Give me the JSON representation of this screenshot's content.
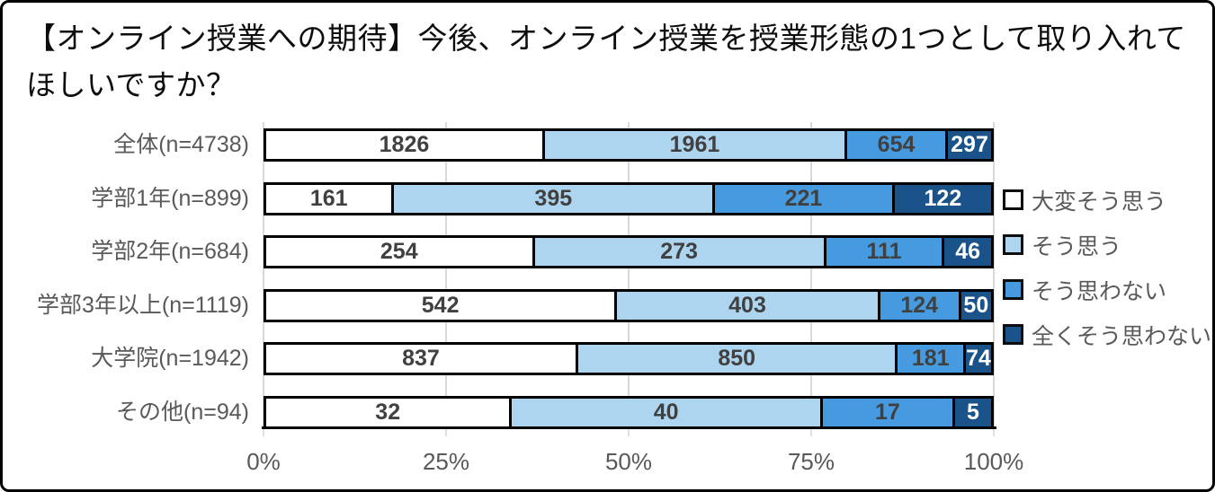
{
  "title": "【オンライン授業への期待】今後、オンライン授業を授業形態の1つとして取り入れてほしいですか？",
  "colors": {
    "frame_border": "#000000",
    "background": "#ffffff",
    "gridline": "#d9d9d9",
    "axis_line": "#000000",
    "bar_border": "#000000",
    "axis_text": "#595959",
    "category_text": "#595959",
    "legend_text": "#595959",
    "value_label_dark": "#404040",
    "value_label_light": "#ffffff"
  },
  "chart_data": {
    "type": "bar",
    "orientation": "horizontal",
    "stacked": true,
    "normalized": "percent",
    "title": "【オンライン授業への期待】今後、オンライン授業を授業形態の1つとして取り入れてほしいですか？",
    "categories": [
      "全体(n=4738)",
      "学部1年(n=899)",
      "学部2年(n=684)",
      "学部3年以上(n=1119)",
      "大学院(n=1942)",
      "その他(n=94)"
    ],
    "category_totals": [
      4738,
      899,
      684,
      1119,
      1942,
      94
    ],
    "series": [
      {
        "name": "大変そう思う",
        "color": "#ffffff",
        "label_color": "#404040",
        "values": [
          1826,
          161,
          254,
          542,
          837,
          32
        ]
      },
      {
        "name": "そう思う",
        "color": "#aed5f0",
        "label_color": "#404040",
        "values": [
          1961,
          395,
          273,
          403,
          850,
          40
        ]
      },
      {
        "name": "そう思わない",
        "color": "#469be0",
        "label_color": "#404040",
        "values": [
          654,
          221,
          111,
          124,
          181,
          17
        ]
      },
      {
        "name": "全くそう思わない",
        "color": "#1a5389",
        "label_color": "#ffffff",
        "values": [
          297,
          122,
          46,
          50,
          74,
          5
        ]
      }
    ],
    "xlabel": "",
    "ylabel": "",
    "x_axis": {
      "ticks": [
        "0%",
        "25%",
        "50%",
        "75%",
        "100%"
      ],
      "range": [
        0,
        100
      ],
      "gridlines": true
    },
    "legend_position": "right"
  }
}
